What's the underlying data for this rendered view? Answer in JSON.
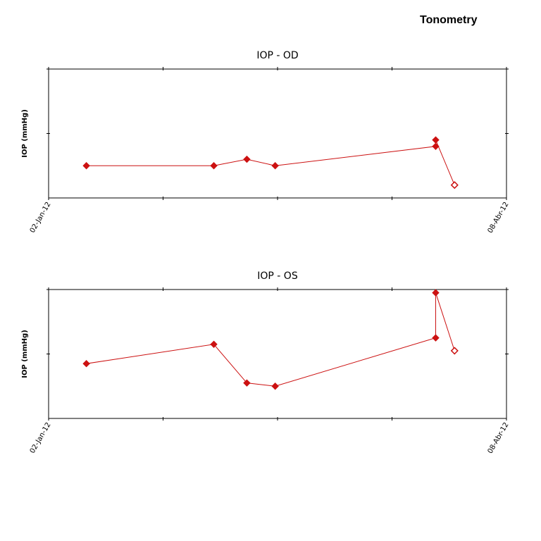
{
  "page": {
    "title": "Tonometry"
  },
  "chart_data": [
    {
      "type": "line",
      "title": "IOP - OD",
      "xlabel": "",
      "ylabel": "IOP (mmHg)",
      "x_tick_labels": [
        "02-Jan-12",
        "08-Abr-12"
      ],
      "xlim": [
        "2012-01-02",
        "2012-04-08"
      ],
      "ylim": [
        0,
        40
      ],
      "y_ticks": [
        20,
        40
      ],
      "grid": false,
      "line_color": "#cc1111",
      "series": [
        {
          "x": [
            "2012-01-10",
            "2012-02-06",
            "2012-02-13",
            "2012-02-19",
            "2012-03-24",
            "2012-03-24",
            "2012-03-28"
          ],
          "y": [
            10,
            10,
            12,
            10,
            16,
            18,
            4
          ],
          "hollow_last": true
        }
      ]
    },
    {
      "type": "line",
      "title": "IOP - OS",
      "xlabel": "",
      "ylabel": "IOP (mmHg)",
      "x_tick_labels": [
        "02-Jan-12",
        "08-Abr-12"
      ],
      "xlim": [
        "2012-01-02",
        "2012-04-08"
      ],
      "ylim": [
        0,
        40
      ],
      "y_ticks": [
        20,
        40
      ],
      "grid": false,
      "line_color": "#cc1111",
      "series": [
        {
          "x": [
            "2012-01-10",
            "2012-02-06",
            "2012-02-13",
            "2012-02-19",
            "2012-03-24",
            "2012-03-24",
            "2012-03-28"
          ],
          "y": [
            17,
            23,
            11,
            10,
            25,
            39,
            21
          ],
          "hollow_last": true
        }
      ]
    }
  ]
}
